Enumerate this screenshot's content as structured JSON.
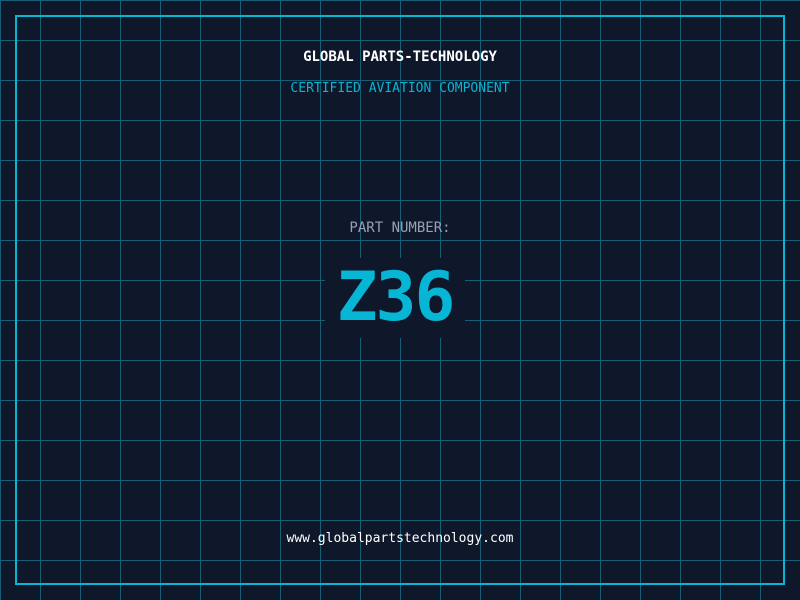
{
  "header": {
    "title": "GLOBAL PARTS-TECHNOLOGY",
    "subtitle": "CERTIFIED AVIATION COMPONENT"
  },
  "part": {
    "label": "PART NUMBER:",
    "number": "Z36"
  },
  "footer": {
    "url": "www.globalpartstechnology.com"
  },
  "colors": {
    "background": "#0f172a",
    "accent": "#06b6d4",
    "grid": "#155e75"
  }
}
